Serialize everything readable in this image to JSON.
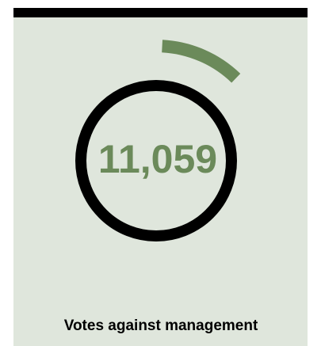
{
  "stat": {
    "value": "11,059",
    "label": "Votes against management"
  }
}
